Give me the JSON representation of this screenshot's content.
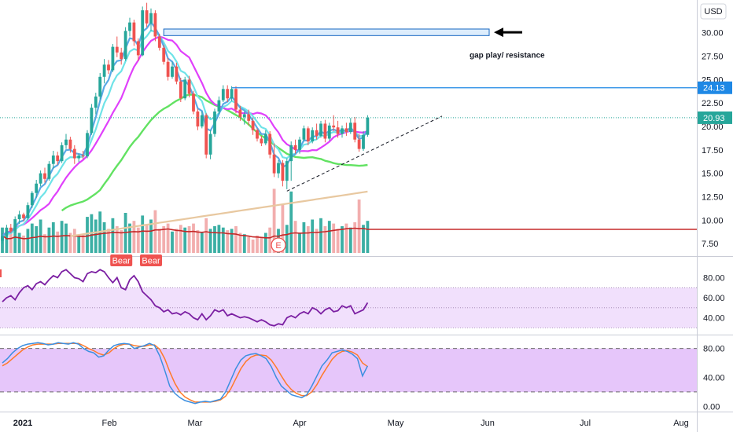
{
  "currency_label": "USD",
  "colors": {
    "up": "#26a69a",
    "down": "#ef5350",
    "vol_up": "#26a69a",
    "vol_down": "#f0a0a0",
    "ema_fast": "#5aa9e6",
    "ema_mid": "#6fe3e8",
    "ma_magenta": "#e040fb",
    "ma_green": "#62e262",
    "ma_tan": "#e8c8a0",
    "vol_ma": "#c62828",
    "rsi_line": "#7b1fa2",
    "rsi_band": "#f1e0fc",
    "stoch_band": "#e6c6fa",
    "stoch_k": "#3c8fe0",
    "stoch_d": "#ff7a2a",
    "price_tag": "#1e88e5",
    "last_tag": "#26a69a"
  },
  "chart_data": [
    {
      "type": "line",
      "title": "",
      "x_labels": [
        "2021",
        "Feb",
        "Mar",
        "Apr",
        "May",
        "Jun",
        "Jul",
        "Aug"
      ],
      "y_ticks": [
        "7.50",
        "10.00",
        "12.50",
        "15.00",
        "17.50",
        "20.00",
        "22.50",
        "25.00",
        "27.50",
        "30.00"
      ],
      "ylim": [
        6.5,
        33.5
      ],
      "ohlc": [
        [
          7.8,
          8.6,
          7.5,
          8.3
        ],
        [
          8.3,
          9.5,
          8.1,
          9.2
        ],
        [
          9.2,
          9.6,
          8.6,
          8.8
        ],
        [
          8.8,
          10.4,
          8.6,
          10.1
        ],
        [
          10.1,
          11.0,
          9.6,
          10.6
        ],
        [
          10.6,
          10.8,
          9.9,
          10.2
        ],
        [
          10.2,
          11.9,
          10.0,
          11.6
        ],
        [
          11.6,
          13.1,
          11.3,
          12.9
        ],
        [
          12.9,
          14.3,
          12.4,
          13.9
        ],
        [
          13.9,
          15.3,
          13.6,
          15.0
        ],
        [
          15.0,
          15.6,
          14.0,
          14.4
        ],
        [
          14.4,
          16.3,
          14.2,
          16.0
        ],
        [
          16.0,
          17.4,
          15.5,
          16.9
        ],
        [
          16.9,
          17.3,
          15.9,
          16.3
        ],
        [
          16.3,
          18.3,
          16.1,
          18.0
        ],
        [
          18.0,
          19.2,
          17.6,
          18.6
        ],
        [
          18.6,
          18.9,
          17.2,
          17.6
        ],
        [
          17.6,
          18.0,
          16.0,
          16.6
        ],
        [
          16.6,
          17.1,
          16.2,
          16.9
        ],
        [
          16.9,
          17.4,
          16.5,
          16.8
        ],
        [
          16.8,
          19.6,
          16.6,
          19.3
        ],
        [
          19.3,
          22.4,
          19.1,
          22.0
        ],
        [
          22.0,
          23.6,
          21.3,
          23.2
        ],
        [
          23.2,
          25.7,
          22.9,
          25.3
        ],
        [
          25.3,
          27.2,
          24.6,
          26.6
        ],
        [
          26.6,
          27.1,
          25.6,
          26.0
        ],
        [
          26.0,
          28.8,
          25.8,
          28.5
        ],
        [
          28.5,
          29.6,
          27.4,
          27.9
        ],
        [
          27.9,
          28.4,
          26.6,
          27.2
        ],
        [
          27.2,
          30.6,
          27.0,
          30.2
        ],
        [
          30.2,
          31.6,
          29.6,
          31.1
        ],
        [
          31.1,
          31.4,
          28.6,
          29.1
        ],
        [
          29.1,
          29.4,
          27.0,
          27.6
        ],
        [
          27.6,
          32.8,
          27.5,
          32.4
        ],
        [
          32.4,
          33.2,
          30.6,
          31.0
        ],
        [
          31.0,
          32.6,
          30.2,
          32.1
        ],
        [
          32.1,
          32.4,
          29.1,
          29.6
        ],
        [
          29.6,
          29.9,
          28.1,
          28.4
        ],
        [
          28.4,
          28.7,
          26.6,
          26.9
        ],
        [
          26.9,
          27.3,
          24.9,
          25.3
        ],
        [
          25.3,
          26.9,
          25.1,
          26.4
        ],
        [
          26.4,
          26.8,
          24.5,
          24.8
        ],
        [
          24.8,
          25.2,
          22.6,
          23.0
        ],
        [
          23.0,
          25.3,
          22.8,
          25.0
        ],
        [
          25.0,
          25.4,
          23.1,
          23.5
        ],
        [
          23.5,
          23.8,
          21.3,
          21.6
        ],
        [
          21.6,
          21.9,
          19.6,
          20.0
        ],
        [
          20.0,
          21.6,
          19.8,
          21.2
        ],
        [
          21.2,
          21.4,
          16.6,
          17.0
        ],
        [
          17.0,
          19.6,
          16.5,
          19.2
        ],
        [
          19.2,
          21.9,
          18.9,
          21.6
        ],
        [
          21.6,
          23.2,
          21.3,
          22.8
        ],
        [
          22.8,
          24.4,
          22.6,
          24.0
        ],
        [
          24.0,
          24.4,
          22.6,
          23.0
        ],
        [
          23.0,
          24.3,
          22.7,
          24.0
        ],
        [
          24.0,
          24.3,
          21.4,
          21.8
        ],
        [
          21.8,
          22.2,
          20.6,
          21.0
        ],
        [
          21.0,
          21.6,
          20.2,
          21.3
        ],
        [
          21.3,
          21.8,
          20.1,
          20.6
        ],
        [
          20.6,
          20.9,
          19.1,
          19.6
        ],
        [
          19.6,
          19.8,
          18.4,
          18.7
        ],
        [
          18.7,
          19.0,
          17.9,
          18.2
        ],
        [
          18.2,
          19.6,
          18.0,
          19.2
        ],
        [
          19.2,
          19.5,
          16.6,
          17.0
        ],
        [
          17.0,
          18.2,
          14.6,
          15.0
        ],
        [
          15.0,
          16.4,
          14.5,
          16.1
        ],
        [
          16.1,
          16.4,
          13.6,
          14.2
        ],
        [
          14.2,
          16.6,
          13.3,
          16.3
        ],
        [
          16.3,
          18.4,
          14.2,
          18.0
        ],
        [
          18.0,
          18.6,
          17.1,
          17.5
        ],
        [
          17.5,
          18.9,
          17.1,
          18.6
        ],
        [
          18.6,
          20.1,
          18.4,
          19.8
        ],
        [
          19.8,
          20.0,
          18.0,
          18.4
        ],
        [
          18.4,
          19.9,
          18.2,
          19.6
        ],
        [
          19.6,
          20.3,
          18.6,
          19.0
        ],
        [
          19.0,
          20.6,
          18.8,
          20.3
        ],
        [
          20.3,
          20.7,
          18.3,
          18.7
        ],
        [
          18.7,
          20.4,
          18.5,
          20.1
        ],
        [
          20.1,
          21.2,
          19.5,
          19.9
        ],
        [
          19.9,
          20.6,
          18.8,
          19.2
        ],
        [
          19.2,
          20.1,
          18.8,
          19.8
        ],
        [
          19.8,
          20.4,
          19.0,
          19.4
        ],
        [
          19.4,
          20.9,
          19.2,
          20.4
        ],
        [
          20.4,
          21.0,
          18.3,
          18.6
        ],
        [
          18.6,
          19.2,
          17.3,
          17.6
        ],
        [
          17.6,
          19.5,
          17.4,
          19.1
        ],
        [
          19.1,
          21.2,
          18.9,
          20.93
        ]
      ],
      "volume": [
        0.38,
        0.28,
        0.34,
        0.42,
        0.3,
        0.26,
        0.36,
        0.44,
        0.4,
        0.5,
        0.28,
        0.38,
        0.46,
        0.32,
        0.48,
        0.44,
        0.3,
        0.36,
        0.26,
        0.28,
        0.54,
        0.58,
        0.5,
        0.62,
        0.46,
        0.36,
        0.52,
        0.4,
        0.34,
        0.6,
        0.44,
        0.48,
        0.38,
        0.56,
        0.42,
        0.5,
        0.64,
        0.36,
        0.4,
        0.44,
        0.32,
        0.36,
        0.42,
        0.38,
        0.4,
        0.44,
        0.34,
        0.3,
        0.52,
        0.36,
        0.4,
        0.42,
        0.38,
        0.34,
        0.36,
        0.4,
        0.3,
        0.28,
        0.24,
        0.2,
        0.26,
        0.24,
        0.3,
        0.38,
        0.96,
        0.36,
        0.72,
        0.42,
        0.92,
        0.48,
        0.3,
        0.46,
        0.4,
        0.5,
        0.36,
        0.52,
        0.4,
        0.48,
        0.44,
        0.36,
        0.4,
        0.44,
        0.38,
        0.46,
        0.8,
        0.42,
        0.48
      ],
      "badges": [
        "Bear",
        "Bear"
      ],
      "earnings_marker": "E",
      "annotation": "gap play/ resistance",
      "resistance_level": 24.13,
      "last_price": 20.93,
      "resistance_label": "24.13",
      "last_label": "20.93",
      "gap_zone": [
        29.7,
        30.4
      ]
    },
    {
      "type": "line",
      "title": "",
      "y_ticks": [
        "40.00",
        "60.00",
        "80.00"
      ],
      "ylim": [
        24,
        100
      ],
      "band": [
        30,
        70
      ],
      "values": [
        56,
        60,
        62,
        58,
        65,
        70,
        72,
        68,
        74,
        76,
        73,
        78,
        82,
        80,
        86,
        88,
        84,
        80,
        79,
        76,
        84,
        86,
        85,
        88,
        86,
        80,
        75,
        80,
        70,
        68,
        78,
        82,
        76,
        66,
        62,
        58,
        52,
        50,
        46,
        48,
        44,
        45,
        43,
        46,
        44,
        40,
        38,
        44,
        38,
        42,
        48,
        46,
        48,
        42,
        44,
        42,
        40,
        41,
        40,
        38,
        36,
        38,
        36,
        33,
        32,
        34,
        33,
        40,
        42,
        40,
        44,
        46,
        44,
        50,
        48,
        44,
        48,
        50,
        46,
        47,
        52,
        50,
        52,
        44,
        46,
        48,
        55
      ]
    },
    {
      "type": "line",
      "title": "",
      "y_ticks": [
        "0.00",
        "40.00",
        "80.00"
      ],
      "ylim": [
        -5,
        97
      ],
      "band": [
        20,
        80
      ],
      "k": [
        60,
        66,
        74,
        80,
        84,
        86,
        87,
        88,
        87,
        85,
        86,
        88,
        87,
        86,
        88,
        86,
        80,
        76,
        74,
        68,
        70,
        78,
        84,
        86,
        87,
        86,
        80,
        82,
        84,
        87,
        84,
        70,
        50,
        28,
        18,
        12,
        8,
        6,
        4,
        6,
        7,
        6,
        8,
        10,
        20,
        36,
        52,
        64,
        70,
        72,
        73,
        70,
        66,
        55,
        40,
        28,
        22,
        16,
        14,
        12,
        16,
        28,
        42,
        56,
        64,
        74,
        76,
        78,
        76,
        72,
        66,
        42,
        56
      ],
      "d": [
        56,
        60,
        66,
        72,
        78,
        82,
        85,
        86,
        86,
        86,
        86,
        87,
        87,
        87,
        87,
        87,
        84,
        80,
        77,
        73,
        71,
        74,
        80,
        84,
        86,
        86,
        84,
        83,
        83,
        85,
        85,
        79,
        66,
        48,
        32,
        20,
        13,
        9,
        6,
        6,
        6,
        6,
        7,
        9,
        14,
        24,
        38,
        52,
        62,
        68,
        71,
        71,
        70,
        64,
        54,
        42,
        31,
        23,
        18,
        15,
        15,
        20,
        30,
        43,
        54,
        65,
        72,
        76,
        77,
        75,
        71,
        60,
        55
      ]
    }
  ]
}
